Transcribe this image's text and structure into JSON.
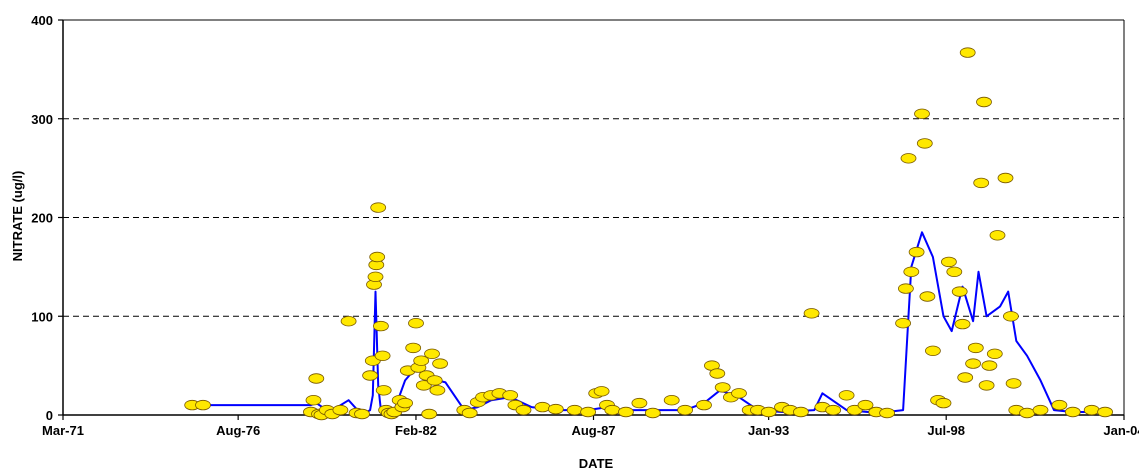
{
  "chart_data": {
    "type": "scatter",
    "title": "",
    "xlabel": "DATE",
    "ylabel": "NITRATE (ug/l)",
    "xlim": [
      "1971-03-01",
      "2004-01-01"
    ],
    "ylim": [
      0,
      400
    ],
    "x_ticks": [
      {
        "date": "1971-03-01",
        "label": "Mar-71"
      },
      {
        "date": "1976-08-01",
        "label": "Aug-76"
      },
      {
        "date": "1982-02-01",
        "label": "Feb-82"
      },
      {
        "date": "1987-08-01",
        "label": "Aug-87"
      },
      {
        "date": "1993-01-01",
        "label": "Jan-93"
      },
      {
        "date": "1998-07-01",
        "label": "Jul-98"
      },
      {
        "date": "2004-01-01",
        "label": "Jan-04"
      }
    ],
    "y_ticks": [
      0,
      100,
      200,
      300,
      400
    ],
    "grid": "horizontal dashed",
    "legend": "none",
    "colors": {
      "points_fill": "#FFE800",
      "points_stroke": "#7A5A00",
      "line": "#0000FF",
      "grid": "#000000"
    },
    "series": [
      {
        "type": "scatter",
        "points": [
          [
            "1975-03-01",
            10
          ],
          [
            "1975-07-01",
            10
          ],
          [
            "1978-11-01",
            3
          ],
          [
            "1978-12-01",
            15
          ],
          [
            "1979-01-01",
            37
          ],
          [
            "1979-02-01",
            1
          ],
          [
            "1979-03-01",
            0
          ],
          [
            "1979-05-01",
            5
          ],
          [
            "1979-07-01",
            1
          ],
          [
            "1979-10-01",
            5
          ],
          [
            "1980-01-01",
            95
          ],
          [
            "1980-04-01",
            2
          ],
          [
            "1980-06-01",
            1
          ],
          [
            "1980-09-01",
            40
          ],
          [
            "1980-10-01",
            55
          ],
          [
            "1980-10-15",
            132
          ],
          [
            "1980-11-01",
            140
          ],
          [
            "1980-11-10",
            152
          ],
          [
            "1980-11-20",
            160
          ],
          [
            "1980-12-01",
            210
          ],
          [
            "1981-01-01",
            90
          ],
          [
            "1981-01-20",
            60
          ],
          [
            "1981-02-01",
            25
          ],
          [
            "1981-03-01",
            5
          ],
          [
            "1981-04-01",
            2
          ],
          [
            "1981-05-01",
            1
          ],
          [
            "1981-06-01",
            3
          ],
          [
            "1981-08-01",
            15
          ],
          [
            "1981-09-01",
            8
          ],
          [
            "1981-10-01",
            12
          ],
          [
            "1981-11-01",
            45
          ],
          [
            "1982-01-01",
            68
          ],
          [
            "1982-02-01",
            93
          ],
          [
            "1982-03-01",
            48
          ],
          [
            "1982-04-01",
            55
          ],
          [
            "1982-05-01",
            30
          ],
          [
            "1982-06-01",
            40
          ],
          [
            "1982-07-01",
            1
          ],
          [
            "1982-08-01",
            62
          ],
          [
            "1982-09-01",
            35
          ],
          [
            "1982-10-01",
            25
          ],
          [
            "1982-11-01",
            52
          ],
          [
            "1983-08-01",
            5
          ],
          [
            "1983-10-01",
            2
          ],
          [
            "1984-01-01",
            13
          ],
          [
            "1984-03-01",
            18
          ],
          [
            "1984-06-01",
            20
          ],
          [
            "1984-09-01",
            22
          ],
          [
            "1985-01-01",
            20
          ],
          [
            "1985-03-01",
            10
          ],
          [
            "1985-06-01",
            5
          ],
          [
            "1986-01-01",
            8
          ],
          [
            "1986-06-01",
            6
          ],
          [
            "1987-01-01",
            5
          ],
          [
            "1987-06-01",
            3
          ],
          [
            "1987-09-01",
            22
          ],
          [
            "1987-11-01",
            24
          ],
          [
            "1988-01-01",
            10
          ],
          [
            "1988-03-01",
            5
          ],
          [
            "1988-08-01",
            3
          ],
          [
            "1989-01-01",
            12
          ],
          [
            "1989-06-01",
            2
          ],
          [
            "1990-01-01",
            15
          ],
          [
            "1990-06-01",
            5
          ],
          [
            "1991-01-01",
            10
          ],
          [
            "1991-04-01",
            50
          ],
          [
            "1991-06-01",
            42
          ],
          [
            "1991-08-01",
            28
          ],
          [
            "1991-11-01",
            18
          ],
          [
            "1992-02-01",
            22
          ],
          [
            "1992-06-01",
            5
          ],
          [
            "1992-09-01",
            5
          ],
          [
            "1993-01-01",
            3
          ],
          [
            "1993-06-01",
            8
          ],
          [
            "1993-09-01",
            5
          ],
          [
            "1994-01-01",
            3
          ],
          [
            "1994-05-01",
            103
          ],
          [
            "1994-09-01",
            8
          ],
          [
            "1995-01-01",
            5
          ],
          [
            "1995-06-01",
            20
          ],
          [
            "1995-09-01",
            5
          ],
          [
            "1996-01-01",
            10
          ],
          [
            "1996-05-01",
            3
          ],
          [
            "1996-09-01",
            2
          ],
          [
            "1997-03-01",
            93
          ],
          [
            "1997-04-01",
            128
          ],
          [
            "1997-05-01",
            260
          ],
          [
            "1997-06-01",
            145
          ],
          [
            "1997-08-01",
            165
          ],
          [
            "1997-10-01",
            305
          ],
          [
            "1997-11-01",
            275
          ],
          [
            "1997-12-01",
            120
          ],
          [
            "1998-02-01",
            65
          ],
          [
            "1998-04-01",
            15
          ],
          [
            "1998-06-01",
            12
          ],
          [
            "1998-08-01",
            155
          ],
          [
            "1998-10-01",
            145
          ],
          [
            "1998-12-01",
            125
          ],
          [
            "1999-01-01",
            92
          ],
          [
            "1999-02-01",
            38
          ],
          [
            "1999-03-01",
            367
          ],
          [
            "1999-05-01",
            52
          ],
          [
            "1999-06-01",
            68
          ],
          [
            "1999-08-01",
            235
          ],
          [
            "1999-09-01",
            317
          ],
          [
            "1999-10-01",
            30
          ],
          [
            "1999-11-01",
            50
          ],
          [
            "2000-01-01",
            62
          ],
          [
            "2000-02-01",
            182
          ],
          [
            "2000-05-01",
            240
          ],
          [
            "2000-07-01",
            100
          ],
          [
            "2000-08-01",
            32
          ],
          [
            "2000-09-01",
            5
          ],
          [
            "2001-01-01",
            2
          ],
          [
            "2001-06-01",
            5
          ],
          [
            "2002-01-01",
            10
          ],
          [
            "2002-06-01",
            3
          ],
          [
            "2003-01-01",
            5
          ],
          [
            "2003-06-01",
            3
          ]
        ]
      },
      {
        "type": "line",
        "points": [
          [
            "1975-03-01",
            10
          ],
          [
            "1978-11-01",
            10
          ],
          [
            "1979-01-01",
            12
          ],
          [
            "1979-06-01",
            3
          ],
          [
            "1980-01-01",
            15
          ],
          [
            "1980-06-01",
            0
          ],
          [
            "1980-09-01",
            5
          ],
          [
            "1980-10-01",
            20
          ],
          [
            "1980-11-01",
            125
          ],
          [
            "1980-12-01",
            30
          ],
          [
            "1981-01-01",
            5
          ],
          [
            "1981-06-01",
            5
          ],
          [
            "1981-10-01",
            35
          ],
          [
            "1982-02-01",
            48
          ],
          [
            "1982-06-01",
            38
          ],
          [
            "1983-01-01",
            33
          ],
          [
            "1983-08-01",
            5
          ],
          [
            "1984-01-01",
            8
          ],
          [
            "1984-06-01",
            15
          ],
          [
            "1985-01-01",
            18
          ],
          [
            "1985-09-01",
            8
          ],
          [
            "1986-06-01",
            5
          ],
          [
            "1987-06-01",
            5
          ],
          [
            "1988-01-01",
            8
          ],
          [
            "1988-06-01",
            5
          ],
          [
            "1989-06-01",
            5
          ],
          [
            "1990-06-01",
            5
          ],
          [
            "1991-01-01",
            12
          ],
          [
            "1991-07-01",
            25
          ],
          [
            "1992-02-01",
            18
          ],
          [
            "1992-09-01",
            5
          ],
          [
            "1993-06-01",
            3
          ],
          [
            "1994-06-01",
            5
          ],
          [
            "1994-09-01",
            22
          ],
          [
            "1995-06-01",
            5
          ],
          [
            "1996-06-01",
            2
          ],
          [
            "1997-03-01",
            5
          ],
          [
            "1997-06-01",
            150
          ],
          [
            "1997-10-01",
            185
          ],
          [
            "1998-02-01",
            160
          ],
          [
            "1998-06-01",
            100
          ],
          [
            "1998-09-01",
            85
          ],
          [
            "1999-01-01",
            130
          ],
          [
            "1999-05-01",
            95
          ],
          [
            "1999-07-01",
            145
          ],
          [
            "1999-10-01",
            100
          ],
          [
            "2000-03-01",
            110
          ],
          [
            "2000-06-01",
            125
          ],
          [
            "2000-09-01",
            75
          ],
          [
            "2001-01-01",
            60
          ],
          [
            "2001-06-01",
            35
          ],
          [
            "2001-11-01",
            5
          ],
          [
            "2002-06-01",
            3
          ],
          [
            "2003-06-01",
            3
          ]
        ]
      }
    ]
  }
}
